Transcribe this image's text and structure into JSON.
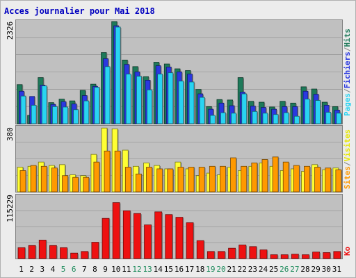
{
  "chart_data": {
    "type": "bar",
    "title": "Acces journalier pour Mai 2018",
    "categories": [
      "1",
      "2",
      "3",
      "4",
      "5",
      "6",
      "7",
      "8",
      "9",
      "10",
      "11",
      "12",
      "13",
      "14",
      "15",
      "16",
      "17",
      "18",
      "19",
      "20",
      "21",
      "22",
      "23",
      "24",
      "25",
      "26",
      "27",
      "28",
      "29",
      "30",
      "31"
    ],
    "weekend_days": [
      "5",
      "6",
      "12",
      "13",
      "19",
      "20",
      "26",
      "27"
    ],
    "colors": {
      "background": "#ececec",
      "plot": "#c0c0c0",
      "border": "#808080",
      "title": "#0000c0",
      "hits": "#1e7a5a",
      "files": "#2a38e0",
      "pages": "#29d4f2",
      "visits": "#ffff33",
      "sites": "#ff9900",
      "kb": "#ee1111",
      "tick_label": "#000000",
      "weekend_label": "#1b8a5a"
    },
    "panels": [
      {
        "id": "top",
        "max_label": "2326",
        "ylim": [
          0,
          2326
        ],
        "legend": [
          "Pages",
          "Fichiers",
          "Hits"
        ],
        "legend_colors": [
          "#29d4f2",
          "#2a38e0",
          "#1e7a5a"
        ],
        "series": [
          {
            "name": "Hits",
            "values": [
              890,
              190,
              1050,
              480,
              560,
              520,
              760,
              900,
              1620,
              2326,
              1450,
              1300,
              1070,
              1400,
              1360,
              1250,
              1210,
              780,
              390,
              550,
              540,
              1050,
              510,
              490,
              380,
              510,
              470,
              840,
              790,
              490,
              390
            ]
          },
          {
            "name": "Fichiers",
            "values": [
              740,
              620,
              880,
              440,
              500,
              450,
              640,
              850,
              1480,
              2230,
              1350,
              1180,
              990,
              1320,
              1290,
              1180,
              1130,
              680,
              330,
              470,
              410,
              720,
              400,
              370,
              330,
              390,
              390,
              740,
              670,
              420,
              310
            ]
          },
          {
            "name": "Pages",
            "values": [
              630,
              420,
              860,
              390,
              380,
              320,
              520,
              830,
              1300,
              2200,
              1130,
              1080,
              770,
              1130,
              1160,
              970,
              950,
              600,
              190,
              250,
              240,
              680,
              280,
              240,
              210,
              250,
              170,
              560,
              530,
              260,
              240
            ]
          }
        ]
      },
      {
        "id": "middle",
        "max_label": "380",
        "ylim": [
          0,
          380
        ],
        "legend": [
          "Sites",
          "/",
          "Visites"
        ],
        "legend_colors": [
          "#ff9900",
          "#808080",
          "#ffff33"
        ],
        "series": [
          {
            "name": "Visites",
            "values": [
              145,
              150,
              175,
              155,
              160,
              100,
              95,
              220,
              375,
              370,
              245,
              150,
              170,
              155,
              135,
              175,
              135,
              95,
              110,
              100,
              145,
              125,
              150,
              170,
              150,
              125,
              135,
              120,
              160,
              130,
              140
            ]
          },
          {
            "name": "Sites",
            "values": [
              125,
              155,
              150,
              140,
              95,
              85,
              85,
              175,
              240,
              240,
              145,
              105,
              145,
              135,
              135,
              145,
              145,
              145,
              150,
              150,
              200,
              150,
              170,
              190,
              205,
              175,
              155,
              150,
              145,
              140,
              130
            ]
          }
        ]
      },
      {
        "id": "bottom",
        "max_label": "115229",
        "ylim": [
          0,
          115229
        ],
        "legend": [
          "Ko"
        ],
        "legend_colors": [
          "#ee1111"
        ],
        "series": [
          {
            "name": "Ko",
            "values": [
              20000,
              24000,
              34000,
              24000,
              20000,
              10000,
              13000,
              30000,
              74000,
              103000,
              88000,
              83000,
              62000,
              86000,
              81000,
              76000,
              66000,
              33000,
              13000,
              13000,
              19000,
              25000,
              22000,
              16000,
              7000,
              7000,
              8000,
              7000,
              12000,
              11000,
              13000
            ]
          }
        ]
      }
    ]
  }
}
